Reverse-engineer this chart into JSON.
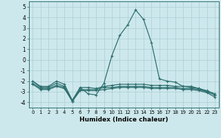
{
  "x": [
    0,
    1,
    2,
    3,
    4,
    5,
    6,
    7,
    8,
    9,
    10,
    11,
    12,
    13,
    14,
    15,
    16,
    17,
    18,
    19,
    20,
    21,
    22,
    23
  ],
  "line1": [
    -2.0,
    -2.5,
    -2.5,
    -2.0,
    -2.3,
    -3.8,
    -2.6,
    -3.2,
    -3.3,
    -2.2,
    0.4,
    2.3,
    3.3,
    4.7,
    3.8,
    1.6,
    -1.8,
    -2.0,
    -2.1,
    -2.5,
    -2.5,
    -2.7,
    -3.0,
    -3.3
  ],
  "line2": [
    -2.0,
    -2.6,
    -2.6,
    -2.2,
    -2.5,
    -3.9,
    -2.6,
    -2.6,
    -2.7,
    -2.5,
    -2.4,
    -2.3,
    -2.3,
    -2.3,
    -2.3,
    -2.4,
    -2.4,
    -2.4,
    -2.5,
    -2.5,
    -2.6,
    -2.7,
    -2.9,
    -3.2
  ],
  "line3": [
    -2.2,
    -2.7,
    -2.7,
    -2.4,
    -2.6,
    -3.9,
    -2.8,
    -2.8,
    -2.8,
    -2.6,
    -2.6,
    -2.5,
    -2.5,
    -2.5,
    -2.5,
    -2.6,
    -2.6,
    -2.6,
    -2.6,
    -2.7,
    -2.7,
    -2.8,
    -3.0,
    -3.3
  ],
  "line4": [
    -2.3,
    -2.8,
    -2.8,
    -2.5,
    -2.7,
    -3.9,
    -2.9,
    -2.9,
    -2.9,
    -2.8,
    -2.7,
    -2.6,
    -2.6,
    -2.6,
    -2.6,
    -2.7,
    -2.7,
    -2.7,
    -2.7,
    -2.8,
    -2.8,
    -2.9,
    -3.1,
    -3.5
  ],
  "line_color": "#2d6e6e",
  "background_color": "#cde8ec",
  "grid_color": "#aacdd4",
  "xlabel": "Humidex (Indice chaleur)",
  "ylim": [
    -4.5,
    5.5
  ],
  "yticks": [
    -4,
    -3,
    -2,
    -1,
    0,
    1,
    2,
    3,
    4,
    5
  ],
  "xticks": [
    0,
    1,
    2,
    3,
    4,
    5,
    6,
    7,
    8,
    9,
    10,
    11,
    12,
    13,
    14,
    15,
    16,
    17,
    18,
    19,
    20,
    21,
    22,
    23
  ],
  "marker": "+",
  "markersize": 3.5,
  "linewidth": 0.9
}
